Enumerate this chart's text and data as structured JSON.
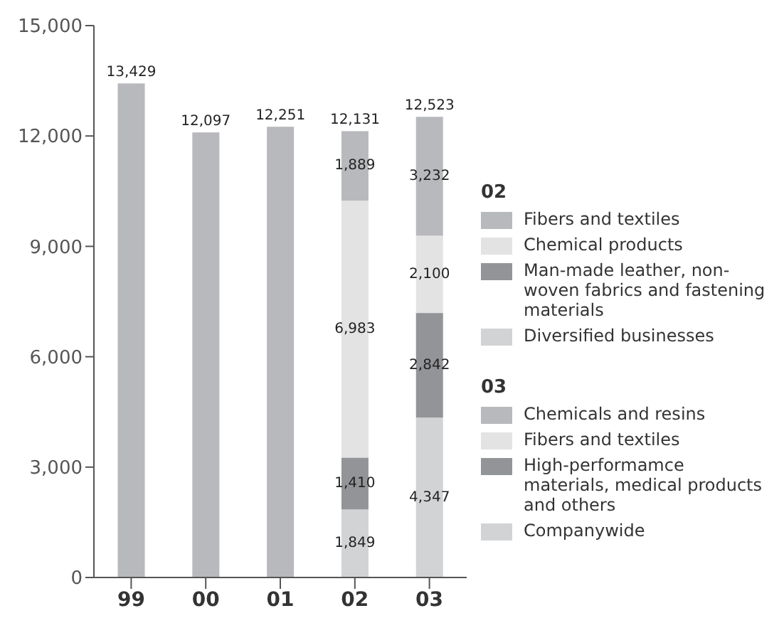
{
  "chart_data": {
    "type": "bar",
    "stacked": true,
    "categories": [
      "99",
      "00",
      "01",
      "02",
      "03"
    ],
    "ylim": [
      0,
      15000
    ],
    "yticks": [
      {
        "value": 0,
        "label": "0"
      },
      {
        "value": 3000,
        "label": "3,000"
      },
      {
        "value": 6000,
        "label": "6,000"
      },
      {
        "value": 9000,
        "label": "9,000"
      },
      {
        "value": 12000,
        "label": "12,000"
      },
      {
        "value": 15000,
        "label": "15,000"
      }
    ],
    "grid": false,
    "legend": "right",
    "annotations": [
      "02",
      "03"
    ],
    "totals": [
      "13,429",
      "12,097",
      "12,251",
      "12,131",
      "12,523"
    ],
    "series": [
      {
        "color": "#b8b9bc",
        "values": [
          13429,
          12097,
          12251,
          null,
          null
        ]
      },
      {
        "name": "Diversified businesses",
        "color": "#d2d3d5",
        "values": [
          null,
          null,
          null,
          1849,
          null
        ],
        "value_labels": [
          null,
          null,
          null,
          "1,849",
          null
        ]
      },
      {
        "name": "Man-made leather, non-woven fabrics and fastening materials",
        "color": "#939497",
        "values": [
          null,
          null,
          null,
          1410,
          null
        ],
        "value_labels": [
          null,
          null,
          null,
          "1,410",
          null
        ]
      },
      {
        "name": "Chemical products",
        "color": "#e3e3e4",
        "values": [
          null,
          null,
          null,
          6983,
          null
        ],
        "value_labels": [
          null,
          null,
          null,
          "6,983",
          null
        ]
      },
      {
        "name": "Fibers and textiles",
        "color": "#b8b9bc",
        "values": [
          null,
          null,
          null,
          1889,
          null
        ],
        "value_labels": [
          null,
          null,
          null,
          "1,889",
          null
        ]
      },
      {
        "name": "Companywide",
        "color": "#d2d3d5",
        "values": [
          null,
          null,
          null,
          null,
          4347
        ],
        "value_labels": [
          null,
          null,
          null,
          null,
          "4,347"
        ]
      },
      {
        "name": "High-performamce materials, medical products and others",
        "color": "#939497",
        "values": [
          null,
          null,
          null,
          null,
          2842
        ],
        "value_labels": [
          null,
          null,
          null,
          null,
          "2,842"
        ]
      },
      {
        "name": "Fibers and textiles",
        "color": "#e3e3e4",
        "values": [
          null,
          null,
          null,
          null,
          2100
        ],
        "value_labels": [
          null,
          null,
          null,
          null,
          "2,100"
        ]
      },
      {
        "name": "Chemicals and resins",
        "color": "#b8b9bc",
        "values": [
          null,
          null,
          null,
          null,
          3232
        ],
        "value_labels": [
          null,
          null,
          null,
          null,
          "3,232"
        ]
      }
    ]
  }
}
